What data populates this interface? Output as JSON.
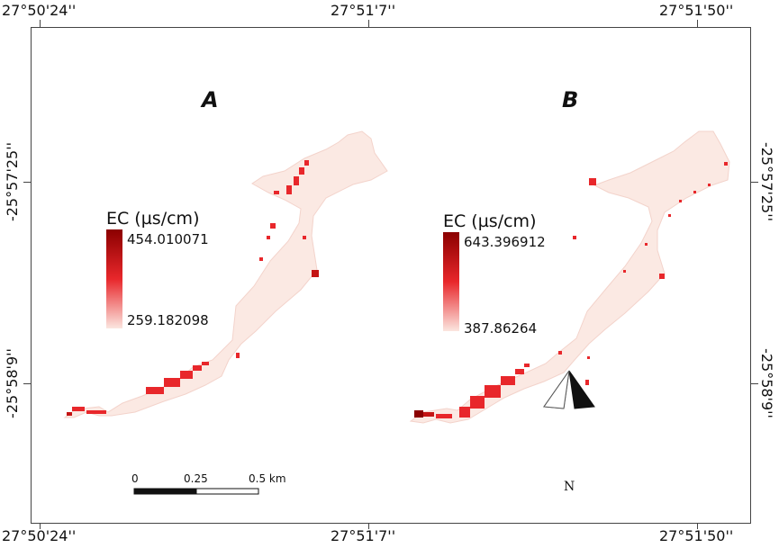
{
  "coords": {
    "top": [
      "27°50'24''",
      "27°51'7''",
      "27°51'50''"
    ],
    "bottom": [
      "27°50'24''",
      "27°51'7''",
      "27°51'50''"
    ],
    "left": [
      "-25°57'25''",
      "-25°58'9''"
    ],
    "right": [
      "-25°57'25''",
      "-25°58'9''"
    ]
  },
  "panels": [
    {
      "label": "A",
      "legend_title": "EC (µs/cm)",
      "legend_max": "454.010071",
      "legend_min": "259.182098",
      "ramp_colors": [
        "#8b0000",
        "#e8272b",
        "#fbe6e0"
      ]
    },
    {
      "label": "B",
      "legend_title": "EC (µs/cm)",
      "legend_max": "643.396912",
      "legend_min": "387.86264",
      "ramp_colors": [
        "#8b0000",
        "#e8272b",
        "#fbe6e0"
      ]
    }
  ],
  "scale_bar": {
    "labels": [
      "0",
      "0.25",
      "0.5 km"
    ]
  },
  "north_arrow": {
    "label": "N",
    "icon": "north-arrow-icon"
  },
  "colors": {
    "water_base": "#fbe9e3",
    "hotspot": "#e8272b",
    "hotspot_dark": "#8b0000"
  }
}
